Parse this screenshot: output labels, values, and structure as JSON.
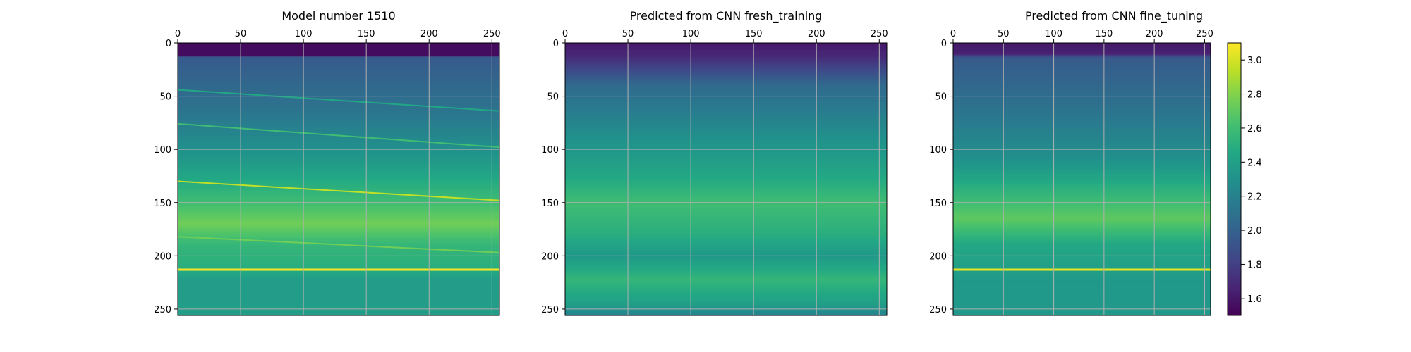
{
  "chart_data": [
    {
      "type": "heatmap",
      "title": "Model number 1510",
      "variant": "layered",
      "x_ticks": [
        0,
        50,
        100,
        150,
        200,
        250
      ],
      "y_ticks": [
        0,
        50,
        100,
        150,
        200,
        250
      ],
      "xlim": [
        0,
        256
      ],
      "ylim": [
        256,
        0
      ],
      "x_axis_position": "top",
      "grid": true,
      "value_range": [
        1.5,
        3.1
      ],
      "background_profile": [
        {
          "depth": 0,
          "value": 1.55
        },
        {
          "depth": 12,
          "value": 1.55
        },
        {
          "depth": 13,
          "value": 1.95
        },
        {
          "depth": 60,
          "value": 2.1
        },
        {
          "depth": 110,
          "value": 2.35
        },
        {
          "depth": 150,
          "value": 2.6
        },
        {
          "depth": 170,
          "value": 2.75
        },
        {
          "depth": 190,
          "value": 2.55
        },
        {
          "depth": 212,
          "value": 2.5
        },
        {
          "depth": 222,
          "value": 2.38
        },
        {
          "depth": 256,
          "value": 2.38
        }
      ],
      "thin_layers": [
        {
          "depth_start": 44,
          "depth_end": 64,
          "value": 2.45
        },
        {
          "depth_start": 76,
          "depth_end": 98,
          "value": 2.6
        },
        {
          "depth_start": 130,
          "depth_end": 148,
          "value": 2.95
        },
        {
          "depth_start": 182,
          "depth_end": 197,
          "value": 2.75
        },
        {
          "depth_start": 213,
          "depth_end": 213,
          "value": 3.1
        }
      ]
    },
    {
      "type": "heatmap",
      "title": "Predicted from CNN fresh_training",
      "variant": "smooth",
      "x_ticks": [
        0,
        50,
        100,
        150,
        200,
        250
      ],
      "y_ticks": [
        0,
        50,
        100,
        150,
        200,
        250
      ],
      "xlim": [
        0,
        256
      ],
      "ylim": [
        256,
        0
      ],
      "x_axis_position": "top",
      "grid": true,
      "value_range": [
        1.5,
        3.1
      ],
      "background_profile": [
        {
          "depth": 0,
          "value": 1.6
        },
        {
          "depth": 14,
          "value": 1.7
        },
        {
          "depth": 40,
          "value": 2.05
        },
        {
          "depth": 90,
          "value": 2.3
        },
        {
          "depth": 125,
          "value": 2.45
        },
        {
          "depth": 150,
          "value": 2.6
        },
        {
          "depth": 180,
          "value": 2.5
        },
        {
          "depth": 200,
          "value": 2.35
        },
        {
          "depth": 222,
          "value": 2.55
        },
        {
          "depth": 245,
          "value": 2.4
        },
        {
          "depth": 256,
          "value": 2.2
        }
      ],
      "thin_layers": []
    },
    {
      "type": "heatmap",
      "title": "Predicted from CNN fine_tuning",
      "variant": "smooth",
      "x_ticks": [
        0,
        50,
        100,
        150,
        200,
        250
      ],
      "y_ticks": [
        0,
        50,
        100,
        150,
        200,
        250
      ],
      "xlim": [
        0,
        256
      ],
      "ylim": [
        256,
        0
      ],
      "x_axis_position": "top",
      "grid": true,
      "value_range": [
        1.5,
        3.1
      ],
      "background_profile": [
        {
          "depth": 0,
          "value": 1.6
        },
        {
          "depth": 10,
          "value": 1.65
        },
        {
          "depth": 14,
          "value": 1.95
        },
        {
          "depth": 60,
          "value": 2.1
        },
        {
          "depth": 110,
          "value": 2.3
        },
        {
          "depth": 135,
          "value": 2.5
        },
        {
          "depth": 165,
          "value": 2.7
        },
        {
          "depth": 190,
          "value": 2.45
        },
        {
          "depth": 212,
          "value": 2.4
        },
        {
          "depth": 225,
          "value": 2.35
        },
        {
          "depth": 256,
          "value": 2.35
        }
      ],
      "thin_layers": [
        {
          "depth_start": 213,
          "depth_end": 213,
          "value": 3.05
        }
      ]
    }
  ],
  "colorbar": {
    "colormap": "viridis",
    "min": 1.5,
    "max": 3.1,
    "ticks": [
      "1.6",
      "1.8",
      "2.0",
      "2.2",
      "2.4",
      "2.6",
      "2.8",
      "3.0"
    ],
    "tick_values": [
      1.6,
      1.8,
      2.0,
      2.2,
      2.4,
      2.6,
      2.8,
      3.0
    ]
  },
  "colors": {
    "grid": "#b0b0b0",
    "frame": "#000000",
    "background": "#ffffff"
  }
}
